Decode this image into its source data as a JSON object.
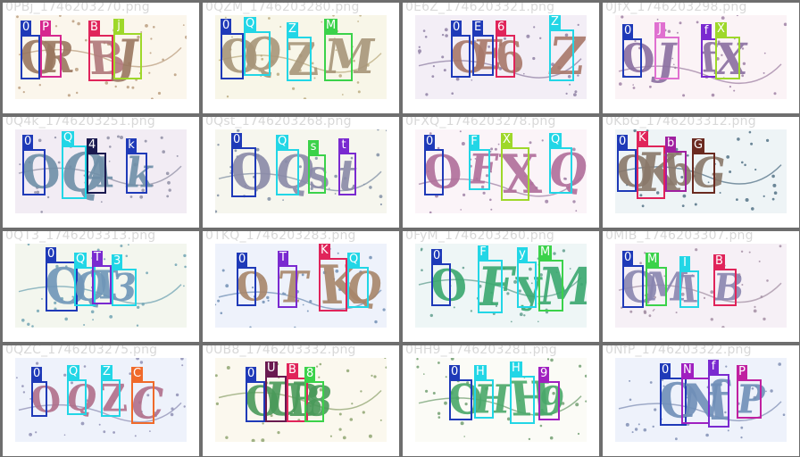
{
  "tiles": [
    {
      "filename": "0PBj_1746203270.png",
      "bg": "#fbf6ec",
      "noise": "#b89a7a",
      "chars": [
        {
          "label": "0",
          "color": "#1f3ab8",
          "glyph": "O",
          "gcolor": "#9a7760"
        },
        {
          "label": "P",
          "color": "#d6278f",
          "glyph": "R",
          "gcolor": "#9a7760"
        },
        {
          "label": "B",
          "color": "#e0245a",
          "glyph": "B",
          "gcolor": "#b0787a"
        },
        {
          "label": "j",
          "color": "#9ed82a",
          "glyph": "J",
          "gcolor": "#9a7760"
        }
      ]
    },
    {
      "filename": "0QZM_1746203280.png",
      "bg": "#f8f6e8",
      "noise": "#b8a87a",
      "chars": [
        {
          "label": "0",
          "color": "#1f3ab8",
          "glyph": "O",
          "gcolor": "#a8967a"
        },
        {
          "label": "Q",
          "color": "#22d6e6",
          "glyph": "Q",
          "gcolor": "#a8967a"
        },
        {
          "label": "Z",
          "color": "#22d6e6",
          "glyph": "Z",
          "gcolor": "#a8967a"
        },
        {
          "label": "M",
          "color": "#3bd24a",
          "glyph": "M",
          "gcolor": "#a8967a"
        }
      ]
    },
    {
      "filename": "0E6Z_1746203321.png",
      "bg": "#f3eef6",
      "noise": "#8a7aa0",
      "chars": [
        {
          "label": "0",
          "color": "#1f3ab8",
          "glyph": "O",
          "gcolor": "#a8786a"
        },
        {
          "label": "E",
          "color": "#1f3ab8",
          "glyph": "E",
          "gcolor": "#a8786a"
        },
        {
          "label": "6",
          "color": "#e0245a",
          "glyph": "6",
          "gcolor": "#a8786a"
        },
        {
          "label": "Z",
          "color": "#22d6e6",
          "glyph": "Z",
          "gcolor": "#a8786a"
        }
      ]
    },
    {
      "filename": "0JfX_1746203298.png",
      "bg": "#fbf3f6",
      "noise": "#9a7aa0",
      "chars": [
        {
          "label": "0",
          "color": "#1f3ab8",
          "glyph": "O",
          "gcolor": "#8a6fa0"
        },
        {
          "label": "J",
          "color": "#e070d0",
          "glyph": "J",
          "gcolor": "#8a6fa0"
        },
        {
          "label": "f",
          "color": "#7a2ad0",
          "glyph": "f",
          "gcolor": "#8a6fa0"
        },
        {
          "label": "X",
          "color": "#9ed82a",
          "glyph": "X",
          "gcolor": "#8a6fa0"
        }
      ]
    },
    {
      "filename": "0Q4k_1746203251.png",
      "bg": "#f2ecf4",
      "noise": "#8a8aa0",
      "chars": [
        {
          "label": "0",
          "color": "#1f3ab8",
          "glyph": "O",
          "gcolor": "#6f8fa8"
        },
        {
          "label": "Q",
          "color": "#22d6e6",
          "glyph": "Q",
          "gcolor": "#6f8fa8"
        },
        {
          "label": "4",
          "color": "#1a1a50",
          "glyph": "4",
          "gcolor": "#6f8fa8"
        },
        {
          "label": "k",
          "color": "#1f3ab8",
          "glyph": "k",
          "gcolor": "#6f8fa8"
        }
      ]
    },
    {
      "filename": "0Qst_1746203268.png",
      "bg": "#f6f6ee",
      "noise": "#7a8aa0",
      "chars": [
        {
          "label": "0",
          "color": "#1f3ab8",
          "glyph": "O",
          "gcolor": "#8a8aa8"
        },
        {
          "label": "Q",
          "color": "#22d6e6",
          "glyph": "Q",
          "gcolor": "#8a8aa8"
        },
        {
          "label": "s",
          "color": "#3bd24a",
          "glyph": "s",
          "gcolor": "#8a8aa8"
        },
        {
          "label": "t",
          "color": "#7a2ad0",
          "glyph": "t",
          "gcolor": "#8a8aa8"
        }
      ]
    },
    {
      "filename": "0FXQ_1746203278.png",
      "bg": "#fbf4f8",
      "noise": "#9a7aa0",
      "chars": [
        {
          "label": "0",
          "color": "#1f3ab8",
          "glyph": "O",
          "gcolor": "#b06f9a"
        },
        {
          "label": "F",
          "color": "#22d6e6",
          "glyph": "F",
          "gcolor": "#b06f9a"
        },
        {
          "label": "X",
          "color": "#9ed82a",
          "glyph": "X",
          "gcolor": "#b06f9a"
        },
        {
          "label": "Q",
          "color": "#22d6e6",
          "glyph": "Q",
          "gcolor": "#b06f9a"
        }
      ]
    },
    {
      "filename": "0KbG_1746203312.png",
      "bg": "#eef4f6",
      "noise": "#4a6a80",
      "chars": [
        {
          "label": "0",
          "color": "#1f3ab8",
          "glyph": "O",
          "gcolor": "#8a786a"
        },
        {
          "label": "K",
          "color": "#e0245a",
          "glyph": "K",
          "gcolor": "#8a786a"
        },
        {
          "label": "b",
          "color": "#a020a0",
          "glyph": "b",
          "gcolor": "#8a786a"
        },
        {
          "label": "G",
          "color": "#6a2a20",
          "glyph": "G",
          "gcolor": "#8a786a"
        }
      ]
    },
    {
      "filename": "0QT3_1746203313.png",
      "bg": "#f3f6ee",
      "noise": "#6aa0b0",
      "chars": [
        {
          "label": "0",
          "color": "#1f3ab8",
          "glyph": "O",
          "gcolor": "#6f96b8"
        },
        {
          "label": "Q",
          "color": "#22d6e6",
          "glyph": "Q",
          "gcolor": "#6f96b8"
        },
        {
          "label": "T",
          "color": "#7a2ad0",
          "glyph": "T",
          "gcolor": "#6f96b8"
        },
        {
          "label": "3",
          "color": "#22d6e6",
          "glyph": "3",
          "gcolor": "#6f96b8"
        }
      ]
    },
    {
      "filename": "0TKQ_1746203283.png",
      "bg": "#eef2fb",
      "noise": "#6a8ab0",
      "chars": [
        {
          "label": "0",
          "color": "#1f3ab8",
          "glyph": "O",
          "gcolor": "#a8866a"
        },
        {
          "label": "T",
          "color": "#7a2ad0",
          "glyph": "T",
          "gcolor": "#a8866a"
        },
        {
          "label": "K",
          "color": "#e0245a",
          "glyph": "K",
          "gcolor": "#a8866a"
        },
        {
          "label": "Q",
          "color": "#22d6e6",
          "glyph": "Q",
          "gcolor": "#a8866a"
        }
      ]
    },
    {
      "filename": "0FyM_1746203260.png",
      "bg": "#eef6f6",
      "noise": "#5a9a8a",
      "chars": [
        {
          "label": "0",
          "color": "#1f3ab8",
          "glyph": "O",
          "gcolor": "#3aa86f"
        },
        {
          "label": "F",
          "color": "#22d6e6",
          "glyph": "F",
          "gcolor": "#3aa86f"
        },
        {
          "label": "y",
          "color": "#22d6e6",
          "glyph": "y",
          "gcolor": "#3aa86f"
        },
        {
          "label": "M",
          "color": "#3bd24a",
          "glyph": "M",
          "gcolor": "#3aa86f"
        }
      ]
    },
    {
      "filename": "0MIB_1746203307.png",
      "bg": "#f6f0f6",
      "noise": "#a08aa0",
      "chars": [
        {
          "label": "0",
          "color": "#1f3ab8",
          "glyph": "O",
          "gcolor": "#8a86b0"
        },
        {
          "label": "M",
          "color": "#3bd24a",
          "glyph": "M",
          "gcolor": "#8a86b0"
        },
        {
          "label": "I",
          "color": "#22d6e6",
          "glyph": "I",
          "gcolor": "#8a86b0"
        },
        {
          "label": "B",
          "color": "#e0245a",
          "glyph": "B",
          "gcolor": "#8a86b0"
        }
      ]
    },
    {
      "filename": "0QZC_1746203275.png",
      "bg": "#eef2fb",
      "noise": "#8a8ab0",
      "chars": [
        {
          "label": "0",
          "color": "#1f3ab8",
          "glyph": "O",
          "gcolor": "#b06f8a"
        },
        {
          "label": "Q",
          "color": "#22d6e6",
          "glyph": "Q",
          "gcolor": "#b06f8a"
        },
        {
          "label": "Z",
          "color": "#22d6e6",
          "glyph": "Z",
          "gcolor": "#b06f8a"
        },
        {
          "label": "C",
          "color": "#f06a2a",
          "glyph": "C",
          "gcolor": "#b06f8a"
        }
      ]
    },
    {
      "filename": "0UB8_1746203332.png",
      "bg": "#fbf8ee",
      "noise": "#8aa06a",
      "chars": [
        {
          "label": "0",
          "color": "#1f3ab8",
          "glyph": "O",
          "gcolor": "#4a9a5a"
        },
        {
          "label": "U",
          "color": "#6a1a50",
          "glyph": "U",
          "gcolor": "#4a9a5a"
        },
        {
          "label": "B",
          "color": "#e0245a",
          "glyph": "B",
          "gcolor": "#4a9a5a"
        },
        {
          "label": "8",
          "color": "#3bd24a",
          "glyph": "8",
          "gcolor": "#4a9a5a"
        }
      ]
    },
    {
      "filename": "0HH9_1746203281.png",
      "bg": "#fbfbf6",
      "noise": "#6a9a6a",
      "chars": [
        {
          "label": "0",
          "color": "#1f3ab8",
          "glyph": "O",
          "gcolor": "#4aa86a"
        },
        {
          "label": "H",
          "color": "#22d6e6",
          "glyph": "H",
          "gcolor": "#4aa86a"
        },
        {
          "label": "H",
          "color": "#22d6e6",
          "glyph": "H",
          "gcolor": "#4aa86a"
        },
        {
          "label": "9",
          "color": "#a020c0",
          "glyph": "9",
          "gcolor": "#4aa86a"
        }
      ]
    },
    {
      "filename": "0NfP_1746203322.png",
      "bg": "#eef2fb",
      "noise": "#7a8ab0",
      "chars": [
        {
          "label": "0",
          "color": "#1f3ab8",
          "glyph": "O",
          "gcolor": "#6f8fb8"
        },
        {
          "label": "N",
          "color": "#a020c0",
          "glyph": "N",
          "gcolor": "#6f8fb8"
        },
        {
          "label": "f",
          "color": "#7a2ad0",
          "glyph": "f",
          "gcolor": "#6f8fb8"
        },
        {
          "label": "P",
          "color": "#c020a0",
          "glyph": "P",
          "gcolor": "#6f8fb8"
        }
      ]
    }
  ]
}
